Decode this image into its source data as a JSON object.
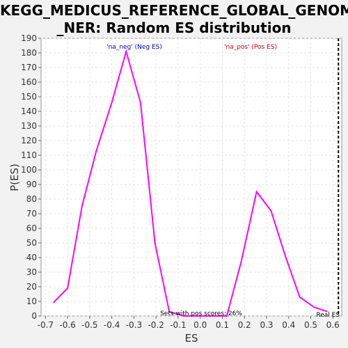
{
  "chart_data": {
    "type": "line",
    "title_line1": "KEGG_MEDICUS_REFERENCE_GLOBAL_GENOME",
    "title_line2": "_NER: Random ES distribution",
    "xlabel": "ES",
    "ylabel": "P(ES)",
    "xlim": [
      -0.72,
      0.64
    ],
    "ylim": [
      0,
      190
    ],
    "xticks": [
      "-0.7",
      "-0.6",
      "-0.5",
      "-0.4",
      "-0.3",
      "-0.2",
      "-0.1",
      "0.0",
      "0.1",
      "0.2",
      "0.3",
      "0.4",
      "0.5",
      "0.6"
    ],
    "xtick_values": [
      -0.7,
      -0.6,
      -0.5,
      -0.4,
      -0.3,
      -0.2,
      -0.1,
      0.0,
      0.1,
      0.2,
      0.3,
      0.4,
      0.5,
      0.6
    ],
    "yticks": [
      0,
      10,
      20,
      30,
      40,
      50,
      60,
      70,
      80,
      90,
      100,
      110,
      120,
      130,
      140,
      150,
      160,
      170,
      180,
      190
    ],
    "grid": true,
    "line_color": "#ff00ff",
    "series": [
      {
        "x": [
          -0.665,
          -0.6,
          -0.535,
          -0.47,
          -0.4,
          -0.335,
          -0.27,
          -0.205,
          -0.14,
          -0.075,
          -0.01,
          0.055,
          0.12,
          0.185,
          0.255,
          0.32,
          0.385,
          0.45,
          0.515,
          0.575
        ],
        "y": [
          9,
          19,
          75,
          113,
          146,
          181,
          146,
          50,
          3,
          0,
          0,
          0,
          0,
          37,
          85,
          72,
          41,
          13,
          6,
          3
        ]
      }
    ],
    "annotations": {
      "neg_label": "'na_neg' (Neg ES)",
      "neg_color": "#0000cc",
      "pos_label": "'na_pos' (Pos ES)",
      "pos_color": "#cc0000",
      "pos_scores_label": "Sets with pos scores: 26%",
      "real_es_label": "Real ES",
      "real_es_x": 0.625
    }
  }
}
